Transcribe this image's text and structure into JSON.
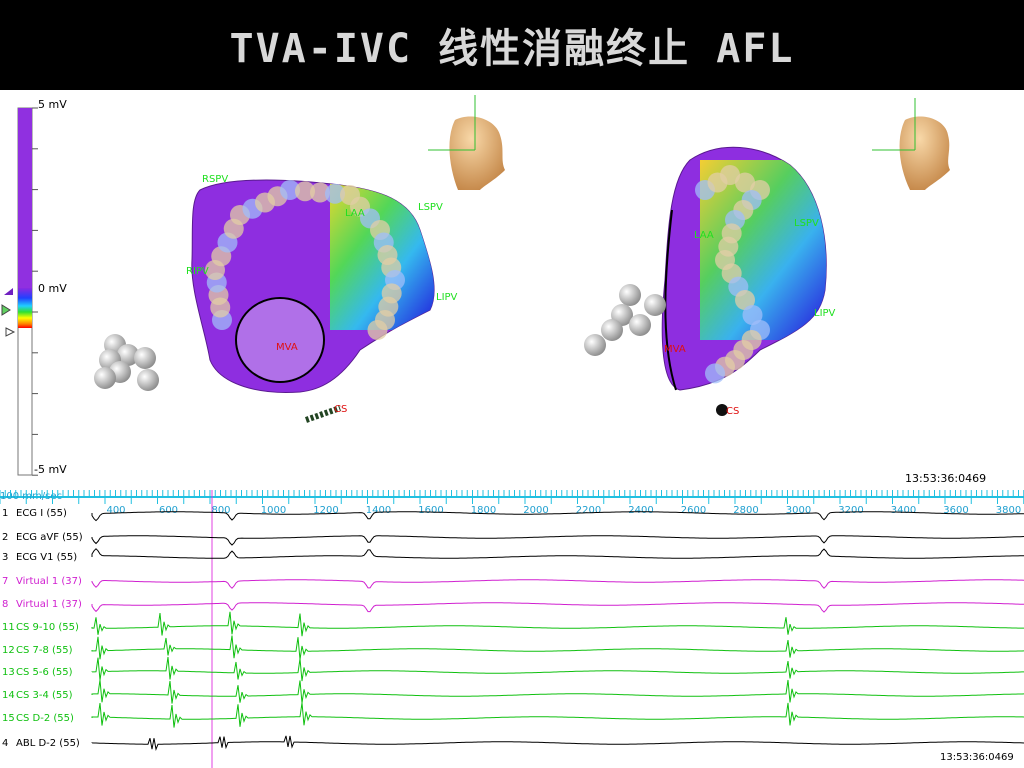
{
  "header": {
    "title": "TVA-IVC 线性消融终止 AFL"
  },
  "voltage_scale": {
    "max_label": "5 mV",
    "mid_label": "0 mV",
    "min_label": "-5 mV"
  },
  "map_left": {
    "labels": [
      "RSPV",
      "RIPV",
      "LAA",
      "LSPV",
      "LIPV",
      "MVA",
      "CS"
    ]
  },
  "map_right": {
    "labels": [
      "LAA",
      "LSPV",
      "LIPV",
      "MVA",
      "CS"
    ]
  },
  "map_timestamp": "13:53:36:0469",
  "ecg": {
    "speed": "100 mm/sec",
    "ruler": [
      400,
      600,
      800,
      1000,
      1200,
      1400,
      1600,
      1800,
      2000,
      2200,
      2400,
      2600,
      2800,
      3000,
      3200,
      3400,
      3600,
      3800
    ],
    "channels": [
      {
        "index": "1",
        "name": "ECG I (55)",
        "color": "#000000"
      },
      {
        "index": "2",
        "name": "ECG aVF (55)",
        "color": "#000000"
      },
      {
        "index": "3",
        "name": "ECG V1 (55)",
        "color": "#000000"
      },
      {
        "index": "7",
        "name": "Virtual 1 (37)",
        "color": "#d020d0"
      },
      {
        "index": "8",
        "name": "Virtual 1 (37)",
        "color": "#d020d0"
      },
      {
        "index": "11",
        "name": "CS 9-10 (55)",
        "color": "#10c010"
      },
      {
        "index": "12",
        "name": "CS 7-8 (55)",
        "color": "#10c010"
      },
      {
        "index": "13",
        "name": "CS 5-6 (55)",
        "color": "#10c010"
      },
      {
        "index": "14",
        "name": "CS 3-4 (55)",
        "color": "#10c010"
      },
      {
        "index": "15",
        "name": "CS D-2 (55)",
        "color": "#10c010"
      },
      {
        "index": "4",
        "name": "ABL D-2 (55)",
        "color": "#000000"
      }
    ],
    "timestamp": "13:53:36:0469"
  }
}
